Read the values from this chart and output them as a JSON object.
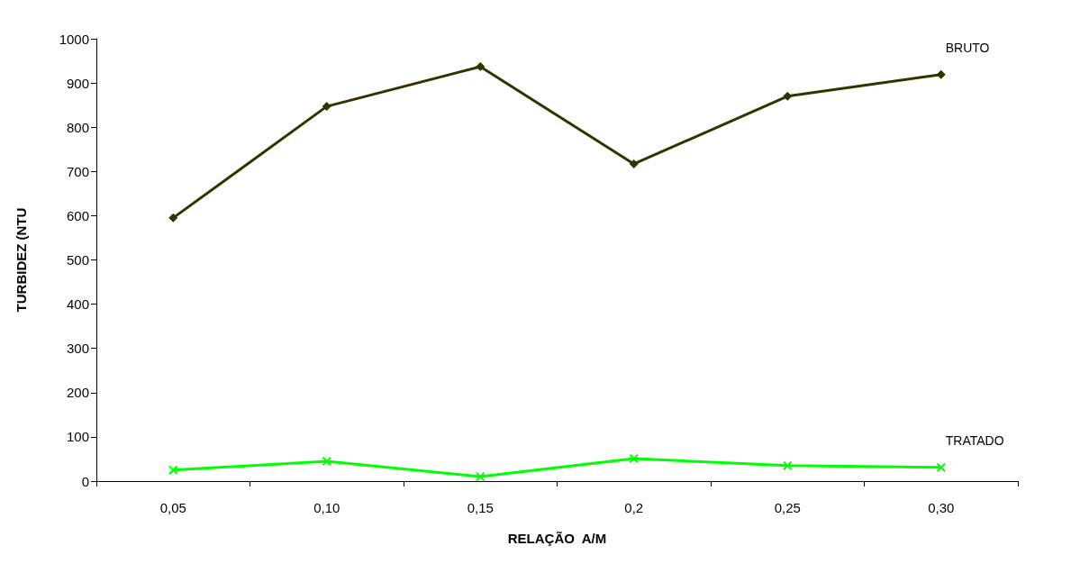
{
  "chart_data": {
    "type": "line",
    "xlabel": "RELAÇÃO  A/M",
    "ylabel": "TURBIDEZ (NTU",
    "categories": [
      "0,05",
      "0,10",
      "0,15",
      "0,2",
      "0,25",
      "0,30"
    ],
    "series": [
      {
        "name": "BRUTO",
        "color": "#333300",
        "marker": "diamond",
        "values": [
          595,
          847,
          937,
          717,
          870,
          919
        ]
      },
      {
        "name": "TRATADO",
        "color": "#00ff00",
        "marker": "cross",
        "values": [
          25,
          45,
          10,
          51,
          35,
          31
        ]
      }
    ],
    "ylim": [
      0,
      1000
    ],
    "yticks": [
      0,
      100,
      200,
      300,
      400,
      500,
      600,
      700,
      800,
      900,
      1000
    ],
    "grid": false
  }
}
